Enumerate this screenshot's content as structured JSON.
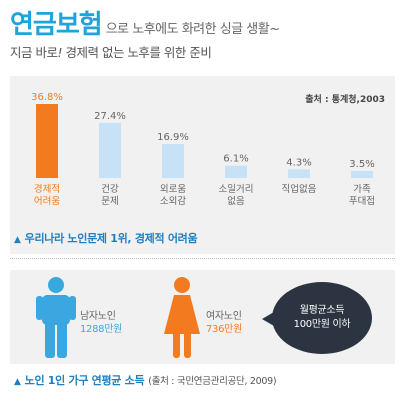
{
  "header": {
    "title": "연금보험",
    "title_rest": "으로  노후에도 화려한 싱글 생활~",
    "subtitle_prefix": "지금 바로",
    "subtitle_mark": "!",
    "subtitle_rest": " 경제력 없는 노후를 위한 준비"
  },
  "chart_data": {
    "type": "bar",
    "categories": [
      "경제적 어려움",
      "건강 문제",
      "외로움 소외감",
      "소일거리 없음",
      "직업없음",
      "가족 푸대접"
    ],
    "category_lines": [
      [
        "경제적",
        "어려움"
      ],
      [
        "건강",
        "문제"
      ],
      [
        "외로움",
        "소외감"
      ],
      [
        "소일거리",
        "없음"
      ],
      [
        "직업없음"
      ],
      [
        "가족",
        "푸대접"
      ]
    ],
    "values": [
      36.8,
      27.4,
      16.9,
      6.1,
      4.3,
      3.5
    ],
    "value_labels": [
      "36.8%",
      "27.4%",
      "16.9%",
      "6.1%",
      "4.3%",
      "3.5%"
    ],
    "highlight_index": 0,
    "colors": {
      "highlight": "#f47a20",
      "normal": "#c7e2f6",
      "highlight_text": "#f47a20",
      "normal_text": "#666666"
    },
    "source": "출처 : 통계청,2003",
    "caption": "우리나라 노인문제 1위, 경제적 어려움"
  },
  "income": {
    "male": {
      "label": "남자노인",
      "amount": "1288만원",
      "color": "#3aa7e0"
    },
    "female": {
      "label": "여자노인",
      "amount": "736만원",
      "color": "#f47a20"
    },
    "bubble_line1": "월평균소득",
    "bubble_line2": "100만원 이하",
    "caption": "노인 1인 가구 연평균 소득",
    "caption_source": "(출처 : 국민연금관리공단, 2009)"
  }
}
